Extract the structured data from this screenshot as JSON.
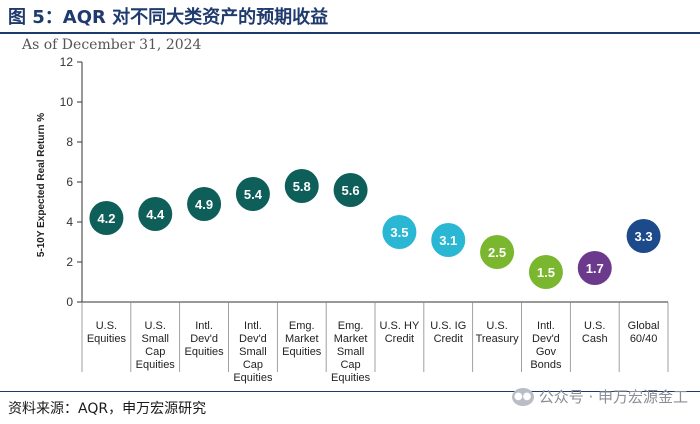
{
  "header": {
    "title": "图 5：AQR 对不同大类资产的预期收益",
    "as_of": "As of December 31, 2024"
  },
  "footer": {
    "source": "资料来源：AQR，申万宏源研究",
    "watermark": "公众号 · 申万宏源金工"
  },
  "chart_data": {
    "type": "scatter",
    "title": "AQR 对不同大类资产的预期收益",
    "subtitle": "As of December 31, 2024",
    "ylabel": "5-10Y Expected Real Return %",
    "xlabel": "",
    "ylim": [
      0,
      12
    ],
    "yticks": [
      0,
      2,
      4,
      6,
      8,
      10,
      12
    ],
    "grid": false,
    "categories": [
      [
        "U.S.",
        "Equities"
      ],
      [
        "U.S.",
        "Small",
        "Cap",
        "Equities"
      ],
      [
        "Intl.",
        "Dev'd",
        "Equities"
      ],
      [
        "Intl.",
        "Dev'd",
        "Small",
        "Cap",
        "Equities"
      ],
      [
        "Emg.",
        "Market",
        "Equities"
      ],
      [
        "Emg.",
        "Market",
        "Small",
        "Cap",
        "Equities"
      ],
      [
        "U.S. HY",
        "Credit"
      ],
      [
        "U.S. IG",
        "Credit"
      ],
      [
        "U.S.",
        "Treasury"
      ],
      [
        "Intl.",
        "Dev'd",
        "Gov",
        "Bonds"
      ],
      [
        "U.S.",
        "Cash"
      ],
      [
        "Global",
        "60/40"
      ]
    ],
    "values": [
      4.2,
      4.4,
      4.9,
      5.4,
      5.8,
      5.6,
      3.5,
      3.1,
      2.5,
      1.5,
      1.7,
      3.3
    ],
    "labels": [
      "4.2",
      "4.4",
      "4.9",
      "5.4",
      "5.8",
      "5.6",
      "3.5",
      "3.1",
      "2.5",
      "1.5",
      "1.7",
      "3.3"
    ],
    "colors": [
      "#0e5f5a",
      "#0e5f5a",
      "#0e5f5a",
      "#0e5f5a",
      "#0e5f5a",
      "#0e5f5a",
      "#29b7d3",
      "#29b7d3",
      "#7ab72f",
      "#7ab72f",
      "#6b3a8c",
      "#1c4a8a"
    ]
  }
}
